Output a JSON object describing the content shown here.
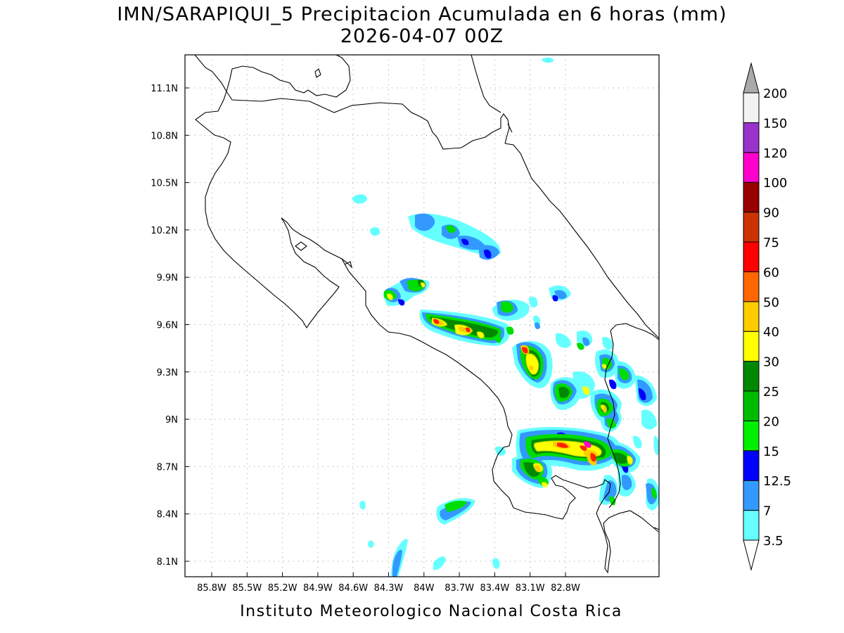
{
  "title": {
    "line1": "IMN/SARAPIQUI_5 Precipitacion Acumulada en 6 horas (mm)",
    "line2": "2026-04-07 00Z"
  },
  "footer": "Instituto Meteorologico Nacional Costa Rica",
  "map": {
    "lon_range": [
      -86.0,
      -83.0
    ],
    "lat_range": [
      8.0,
      11.3
    ],
    "lon_ticks": [
      {
        "v": -85.8,
        "label": "85.8W"
      },
      {
        "v": -85.5,
        "label": "85.5W"
      },
      {
        "v": -85.2,
        "label": "85.2W"
      },
      {
        "v": -84.9,
        "label": "84.9W"
      },
      {
        "v": -84.6,
        "label": "84.6W"
      },
      {
        "v": -84.3,
        "label": "84.3W"
      },
      {
        "v": -84.0,
        "label": "84W"
      },
      {
        "v": -83.7,
        "label": "83.7W"
      },
      {
        "v": -83.4,
        "label": "83.4W"
      },
      {
        "v": -83.1,
        "label": "83.1W"
      },
      {
        "v": -82.8,
        "label": "82.8W"
      }
    ],
    "lat_ticks": [
      {
        "v": 8.1,
        "label": "8.1N"
      },
      {
        "v": 8.4,
        "label": "8.4N"
      },
      {
        "v": 8.7,
        "label": "8.7N"
      },
      {
        "v": 9.0,
        "label": "9N"
      },
      {
        "v": 9.3,
        "label": "9.3N"
      },
      {
        "v": 9.6,
        "label": "9.6N"
      },
      {
        "v": 9.9,
        "label": "9.9N"
      },
      {
        "v": 10.2,
        "label": "10.2N"
      },
      {
        "v": 10.5,
        "label": "10.5N"
      },
      {
        "v": 10.8,
        "label": "10.8N"
      },
      {
        "v": 11.1,
        "label": "11.1N"
      }
    ],
    "grid": "dotted"
  },
  "colorbar": {
    "levels": [
      "3.5",
      "7",
      "12.5",
      "15",
      "20",
      "25",
      "30",
      "40",
      "50",
      "60",
      "75",
      "90",
      "100",
      "120",
      "150",
      "200"
    ],
    "colors": [
      "#66ffff",
      "#3399ff",
      "#0000ff",
      "#00ee00",
      "#00bb00",
      "#008800",
      "#ffff00",
      "#ffcc00",
      "#ff6600",
      "#ff0000",
      "#cc3300",
      "#990000",
      "#ff00cc",
      "#9933cc",
      "#f2f2f2",
      "#aaaaaa"
    ]
  }
}
